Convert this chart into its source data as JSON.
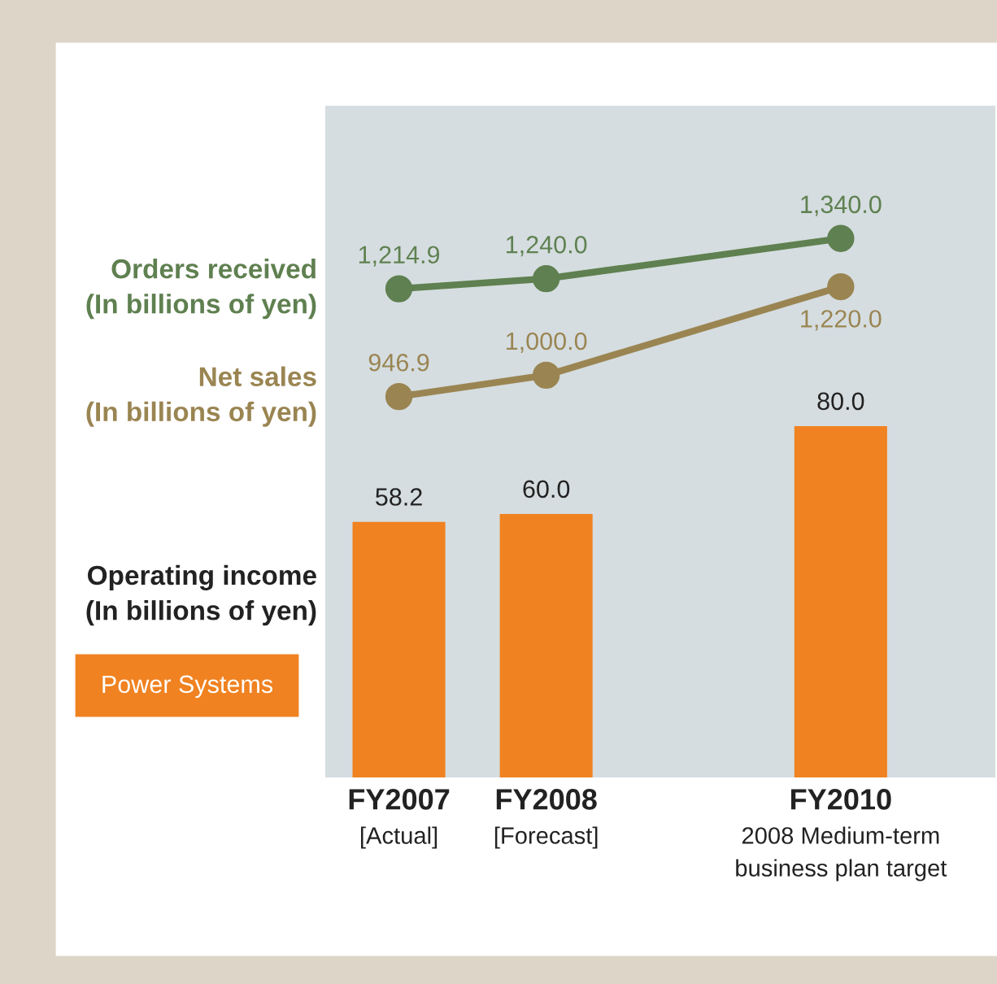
{
  "chart_data": {
    "type": "bar",
    "title": "Power Systems",
    "categories": [
      "FY2007\n[Actual]",
      "FY2008\n[Forecast]",
      null,
      "FY2010\n2008 Medium-term\nbusiness plan target"
    ],
    "series": [
      {
        "name": "Operating income\n(In billions of yen)",
        "color": "#f08221",
        "values": [
          58.2,
          60.0,
          null,
          80.0
        ],
        "value_labels": [
          "58.2",
          "60.0",
          null,
          "80.0"
        ]
      },
      {
        "name": "Orders received\n(In billions of yen)",
        "type": "line",
        "axis": "y2",
        "color": "#5f8050",
        "values": [
          1214.9,
          1240.0,
          null,
          1340.0
        ],
        "value_labels": [
          "1,214.9",
          "1,240.0",
          null,
          "1,340.0"
        ]
      },
      {
        "name": "Net sales\n(In billions of yen)",
        "type": "line",
        "axis": "y2",
        "color": "#9a8552",
        "values": [
          946.9,
          1000.0,
          null,
          1220.0
        ],
        "value_labels": [
          "946.9",
          "1,000.0",
          null,
          "1,220.0"
        ]
      }
    ],
    "ylim": [
      0,
      153
    ],
    "y2lim": [
      0,
      1670
    ],
    "marker": "circle"
  }
}
